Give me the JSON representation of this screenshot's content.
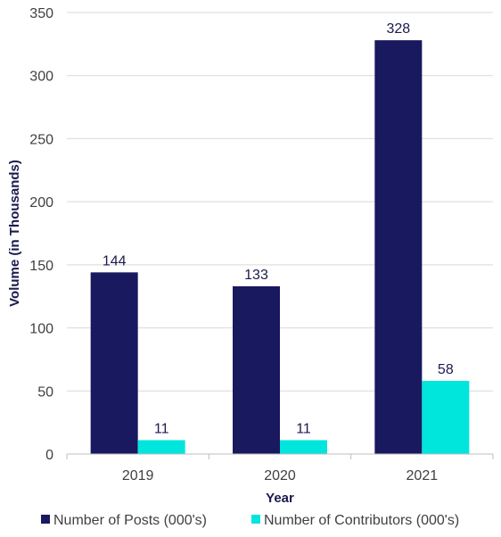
{
  "chart_data": {
    "type": "bar",
    "categories": [
      "2019",
      "2020",
      "2021"
    ],
    "series": [
      {
        "name": "Number of Posts (000's)",
        "values": [
          144,
          133,
          328
        ],
        "color": "#191960"
      },
      {
        "name": "Number of Contributors (000's)",
        "values": [
          11,
          11,
          58
        ],
        "color": "#00e5dc"
      }
    ],
    "xlabel": "Year",
    "ylabel": "Volume (in Thousands)",
    "ylim": [
      0,
      350
    ],
    "yticks": [
      0,
      50,
      100,
      150,
      200,
      250,
      300,
      350
    ],
    "grid": true,
    "legend_position": "bottom"
  }
}
